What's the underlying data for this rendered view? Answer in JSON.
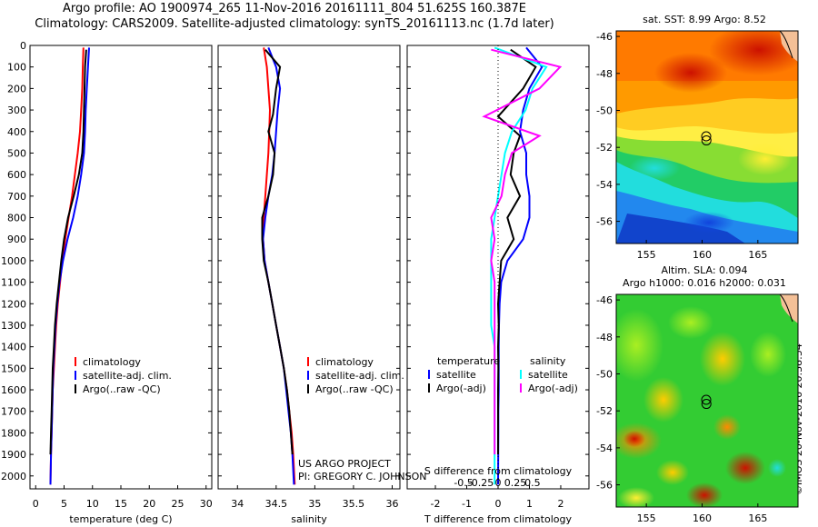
{
  "title_line1": "Argo profile: AO 1900974_265 11-Nov-2016 20161111_804 51.625S 160.387E",
  "title_line2": "Climatology: CARS2009. Satellite-adjusted climatology: synTS_20161113.nc (1.7d later)",
  "map_sst_title": "sat. SST: 8.99 Argo: 8.52",
  "map_sla_title1": "Altim. SLA: 0.094",
  "map_sla_title2": "Argo h1000: 0.016 h2000: 0.031",
  "project_line1": "US ARGO PROJECT",
  "project_line2": "PI: GREGORY C. JOHNSON",
  "imos_label": "©IMOS 20-Nov-2016 20:38:54",
  "colors": {
    "climatology": "#ff0000",
    "satellite_temp": "#0000ff",
    "argo": "#000000",
    "satellite_sal": "#00ffff",
    "argo_sal_diff": "#ff00ff"
  },
  "chart_data": [
    {
      "type": "line",
      "xlabel": "temperature (deg C)",
      "ylim": [
        2060,
        0
      ],
      "xlim": [
        -1,
        31
      ],
      "xticks": [
        0,
        5,
        10,
        15,
        20,
        25,
        30
      ],
      "yticks": [
        0,
        100,
        200,
        300,
        400,
        500,
        600,
        700,
        800,
        900,
        1000,
        1100,
        1200,
        1300,
        1400,
        1500,
        1600,
        1700,
        1800,
        1900,
        2000
      ],
      "legend": [
        "climatology",
        "satellite-adj. clim.",
        "Argo(..raw -QC)"
      ],
      "series": [
        {
          "name": "climatology",
          "color": "#ff0000",
          "x": [
            8.4,
            8.3,
            8.2,
            8.0,
            7.8,
            7.4,
            6.9,
            6.4,
            5.8,
            5.2,
            4.7,
            4.3,
            3.9,
            3.6,
            3.4,
            3.2,
            3.0,
            2.9,
            2.8,
            2.7,
            2.6
          ],
          "y": [
            10,
            100,
            200,
            300,
            400,
            500,
            600,
            700,
            800,
            900,
            1000,
            1100,
            1200,
            1300,
            1400,
            1500,
            1600,
            1700,
            1800,
            1900,
            2040
          ]
        },
        {
          "name": "satellite-adj. clim.",
          "color": "#0000ff",
          "x": [
            9.4,
            9.2,
            9.0,
            8.8,
            8.7,
            8.5,
            8.0,
            7.4,
            6.6,
            5.6,
            4.8,
            4.2,
            3.8,
            3.5,
            3.3,
            3.1,
            3.0,
            2.9,
            2.8,
            2.7,
            2.6
          ],
          "y": [
            10,
            100,
            200,
            300,
            400,
            500,
            600,
            700,
            800,
            900,
            1000,
            1100,
            1200,
            1300,
            1400,
            1500,
            1600,
            1700,
            1800,
            1900,
            2040
          ]
        },
        {
          "name": "Argo(..raw -QC)",
          "color": "#000000",
          "x": [
            8.9,
            8.7,
            8.6,
            8.5,
            8.4,
            8.2,
            7.6,
            6.7,
            5.7,
            5.0,
            4.5,
            4.1,
            3.7,
            3.4,
            3.2,
            3.0,
            2.9,
            2.8,
            2.7,
            2.6
          ],
          "y": [
            20,
            100,
            200,
            300,
            400,
            500,
            600,
            700,
            800,
            900,
            1000,
            1100,
            1200,
            1300,
            1400,
            1500,
            1600,
            1700,
            1800,
            1900
          ]
        }
      ]
    },
    {
      "type": "line",
      "xlabel": "salinity",
      "ylim": [
        2060,
        0
      ],
      "xlim": [
        33.75,
        36.1
      ],
      "xticks": [
        34,
        34.5,
        35,
        35.5,
        36
      ],
      "legend": [
        "climatology",
        "satellite-adj. clim.",
        "Argo(..raw -QC)"
      ],
      "series": [
        {
          "name": "climatology",
          "color": "#ff0000",
          "x": [
            34.34,
            34.38,
            34.4,
            34.42,
            34.41,
            34.4,
            34.38,
            34.36,
            34.34,
            34.33,
            34.35,
            34.4,
            34.45,
            34.5,
            34.55,
            34.6,
            34.64,
            34.67,
            34.7,
            34.72,
            34.74
          ],
          "y": [
            10,
            100,
            200,
            300,
            400,
            500,
            600,
            700,
            800,
            900,
            1000,
            1100,
            1200,
            1300,
            1400,
            1500,
            1600,
            1700,
            1800,
            1900,
            2040
          ]
        },
        {
          "name": "satellite-adj. clim.",
          "color": "#0000ff",
          "x": [
            34.4,
            34.5,
            34.55,
            34.52,
            34.5,
            34.48,
            34.45,
            34.4,
            34.36,
            34.33,
            34.35,
            34.4,
            34.45,
            34.5,
            34.55,
            34.6,
            34.63,
            34.66,
            34.69,
            34.71,
            34.73
          ],
          "y": [
            10,
            100,
            200,
            300,
            400,
            500,
            600,
            700,
            800,
            900,
            1000,
            1100,
            1200,
            1300,
            1400,
            1500,
            1600,
            1700,
            1800,
            1900,
            2040
          ]
        },
        {
          "name": "Argo(..raw -QC)",
          "color": "#000000",
          "x": [
            34.36,
            34.55,
            34.5,
            34.46,
            34.4,
            34.48,
            34.46,
            34.4,
            34.32,
            34.32,
            34.34,
            34.4,
            34.45,
            34.5,
            34.55,
            34.6,
            34.64,
            34.67,
            34.69,
            34.71
          ],
          "y": [
            20,
            100,
            200,
            320,
            400,
            500,
            600,
            700,
            800,
            900,
            1000,
            1100,
            1200,
            1300,
            1400,
            1500,
            1600,
            1700,
            1800,
            1900
          ]
        }
      ]
    },
    {
      "type": "line",
      "xlabel": "T difference from climatology",
      "x2label": "S difference from climatology",
      "ylim": [
        2060,
        0
      ],
      "xlim": [
        -2.9,
        2.9
      ],
      "xticks": [
        -2,
        -1,
        0,
        1,
        2
      ],
      "x2ticks": [
        "-0.5",
        "-0.25",
        "0",
        "0.25",
        "0.5"
      ],
      "x2tick_values": [
        -0.5,
        -0.25,
        0,
        0.25,
        0.5
      ],
      "legend_temperature_header": "temperature",
      "legend_salinity_header": "salinity",
      "legend": [
        "satellite",
        "Argo(-adj)",
        "satellite",
        "Argo(-adj)"
      ],
      "series": [
        {
          "name": "satellite",
          "group": "temperature",
          "color": "#0000ff",
          "x": [
            0.9,
            1.4,
            1.0,
            0.8,
            0.7,
            0.9,
            0.9,
            1.0,
            1.0,
            0.8,
            0.3,
            0.1,
            0.05,
            0.03,
            0.02,
            0.02,
            0.02,
            0.01,
            0.01,
            0.0
          ],
          "y": [
            10,
            100,
            200,
            300,
            400,
            500,
            600,
            700,
            800,
            900,
            1000,
            1100,
            1200,
            1300,
            1400,
            1500,
            1600,
            1700,
            1800,
            2040
          ]
        },
        {
          "name": "Argo(-adj)",
          "group": "temperature",
          "color": "#000000",
          "x": [
            0.4,
            1.2,
            0.8,
            0.0,
            0.7,
            0.5,
            0.4,
            0.7,
            0.3,
            0.5,
            0.1,
            0.05,
            0.0,
            0.02,
            0.0,
            0.01,
            0.0,
            0.0,
            0.0
          ],
          "y": [
            20,
            100,
            200,
            330,
            420,
            500,
            600,
            700,
            800,
            900,
            1000,
            1100,
            1200,
            1300,
            1400,
            1500,
            1600,
            1700,
            1900
          ]
        },
        {
          "name": "satellite",
          "group": "salinity",
          "color": "#00ffff",
          "x": [
            -0.05,
            0.7,
            0.5,
            0.4,
            0.2,
            0.1,
            0.05,
            0.0,
            -0.05,
            -0.1,
            -0.1,
            -0.1,
            -0.1,
            -0.1,
            -0.05,
            -0.05,
            -0.05,
            -0.05,
            -0.05,
            -0.05
          ],
          "y": [
            10,
            100,
            200,
            300,
            400,
            500,
            600,
            700,
            800,
            900,
            1000,
            1100,
            1200,
            1300,
            1400,
            1500,
            1600,
            1700,
            1800,
            2040
          ]
        },
        {
          "name": "Argo(-adj)",
          "group": "salinity",
          "color": "#ff00ff",
          "x": [
            -0.1,
            0.9,
            0.6,
            -0.2,
            0.6,
            0.2,
            0.1,
            0.05,
            -0.1,
            -0.05,
            -0.1,
            -0.05,
            -0.05,
            -0.05,
            -0.05,
            -0.05,
            -0.05,
            -0.05,
            -0.05
          ],
          "y": [
            20,
            100,
            200,
            330,
            420,
            500,
            600,
            700,
            800,
            900,
            1000,
            1100,
            1200,
            1300,
            1400,
            1500,
            1600,
            1700,
            1900
          ]
        }
      ]
    },
    {
      "type": "heatmap",
      "title": "sat. SST: 8.99 Argo: 8.52",
      "xticks": [
        155,
        160,
        165
      ],
      "yticks": [
        -46,
        -48,
        -50,
        -52,
        -54,
        -56
      ],
      "xlim": [
        152.3,
        168.6
      ],
      "ylim": [
        -57.2,
        -45.7
      ],
      "profile_marker": {
        "lon": 160.387,
        "lat": -51.625
      }
    },
    {
      "type": "heatmap",
      "title": "Argo h1000: 0.016 h2000: 0.031",
      "xticks": [
        155,
        160,
        165
      ],
      "yticks": [
        -46,
        -48,
        -50,
        -52,
        -54,
        -56
      ],
      "xlim": [
        152.3,
        168.6
      ],
      "ylim": [
        -57.2,
        -45.7
      ],
      "profile_marker": {
        "lon": 160.387,
        "lat": -51.625
      }
    }
  ]
}
